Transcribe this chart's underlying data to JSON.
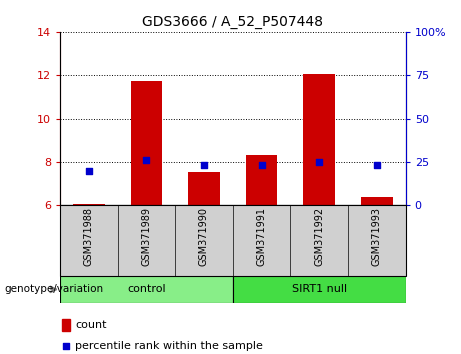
{
  "title": "GDS3666 / A_52_P507448",
  "samples": [
    "GSM371988",
    "GSM371989",
    "GSM371990",
    "GSM371991",
    "GSM371992",
    "GSM371993"
  ],
  "count_values": [
    6.05,
    11.75,
    7.52,
    8.3,
    12.05,
    6.4
  ],
  "count_base": 6.0,
  "percentile_values": [
    20,
    26,
    23,
    23,
    25,
    23
  ],
  "ylim_left": [
    6,
    14
  ],
  "ylim_right": [
    0,
    100
  ],
  "yticks_left": [
    6,
    8,
    10,
    12,
    14
  ],
  "yticks_right": [
    0,
    25,
    50,
    75,
    100
  ],
  "ytick_labels_right": [
    "0",
    "25",
    "50",
    "75",
    "100%"
  ],
  "groups": [
    {
      "label": "control",
      "indices": [
        0,
        1,
        2
      ],
      "color": "#88ee88"
    },
    {
      "label": "SIRT1 null",
      "indices": [
        3,
        4,
        5
      ],
      "color": "#44dd44"
    }
  ],
  "bar_color": "#cc0000",
  "dot_color": "#0000cc",
  "left_axis_color": "#cc0000",
  "right_axis_color": "#0000cc",
  "legend_count_label": "count",
  "legend_pct_label": "percentile rank within the sample",
  "genotype_label": "genotype/variation",
  "bar_width": 0.55,
  "dot_size": 25,
  "sample_bg": "#d0d0d0"
}
